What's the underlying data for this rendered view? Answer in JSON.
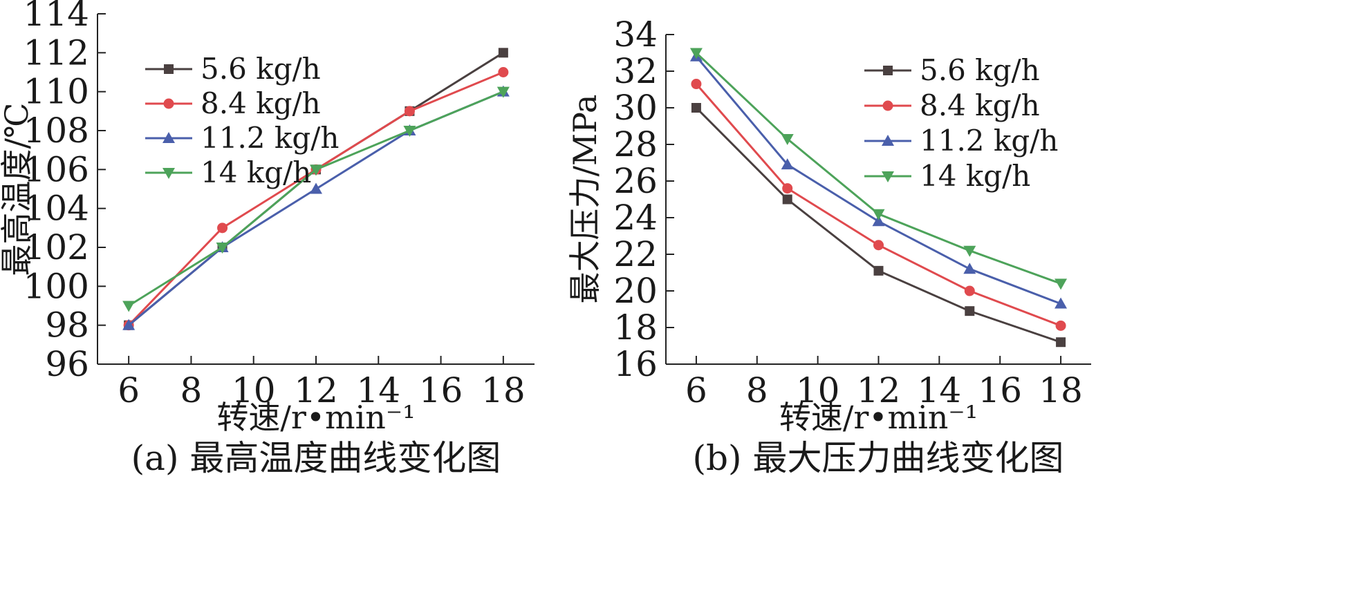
{
  "chart_data": [
    {
      "type": "line",
      "title": "",
      "caption": "(a) 最高温度曲线变化图",
      "xlabel": "转速/r•min⁻¹",
      "ylabel": "最高温度/℃",
      "xlim": [
        5,
        19
      ],
      "ylim": [
        96,
        114
      ],
      "x_ticks": [
        6,
        8,
        10,
        12,
        14,
        16,
        18
      ],
      "y_ticks": [
        96,
        98,
        100,
        102,
        104,
        106,
        108,
        110,
        112,
        114
      ],
      "legend_position": "top-left",
      "x": [
        6,
        9,
        12,
        15,
        18
      ],
      "series": [
        {
          "name": "5.6 kg/h",
          "color": "#4a4040",
          "marker": "square",
          "values": [
            98,
            102,
            106,
            109,
            112
          ]
        },
        {
          "name": "8.4 kg/h",
          "color": "#e04a4e",
          "marker": "circle",
          "values": [
            98,
            103,
            106,
            109,
            111
          ]
        },
        {
          "name": "11.2 kg/h",
          "color": "#4a5fab",
          "marker": "triangle-up",
          "values": [
            98,
            102,
            105,
            108,
            110
          ]
        },
        {
          "name": "14 kg/h",
          "color": "#4da35a",
          "marker": "triangle-down",
          "values": [
            99,
            102,
            106,
            108,
            110
          ]
        }
      ]
    },
    {
      "type": "line",
      "title": "",
      "caption": "(b) 最大压力曲线变化图",
      "xlabel": "转速/r•min⁻¹",
      "ylabel": "最大压力/MPa",
      "xlim": [
        5,
        19
      ],
      "ylim": [
        16,
        34
      ],
      "x_ticks": [
        6,
        8,
        10,
        12,
        14,
        16,
        18
      ],
      "y_ticks": [
        16,
        18,
        20,
        22,
        24,
        26,
        28,
        30,
        32,
        34
      ],
      "legend_position": "top-right",
      "x": [
        6,
        9,
        12,
        15,
        18
      ],
      "series": [
        {
          "name": "5.6 kg/h",
          "color": "#4a4040",
          "marker": "square",
          "values": [
            30.0,
            25.0,
            21.1,
            18.9,
            17.2
          ]
        },
        {
          "name": "8.4 kg/h",
          "color": "#e04a4e",
          "marker": "circle",
          "values": [
            31.3,
            25.6,
            22.5,
            20.0,
            18.1
          ]
        },
        {
          "name": "11.2 kg/h",
          "color": "#4a5fab",
          "marker": "triangle-up",
          "values": [
            32.8,
            26.9,
            23.8,
            21.2,
            19.3
          ]
        },
        {
          "name": "14 kg/h",
          "color": "#4da35a",
          "marker": "triangle-down",
          "values": [
            33.0,
            28.3,
            24.2,
            22.2,
            20.4
          ]
        }
      ]
    }
  ]
}
